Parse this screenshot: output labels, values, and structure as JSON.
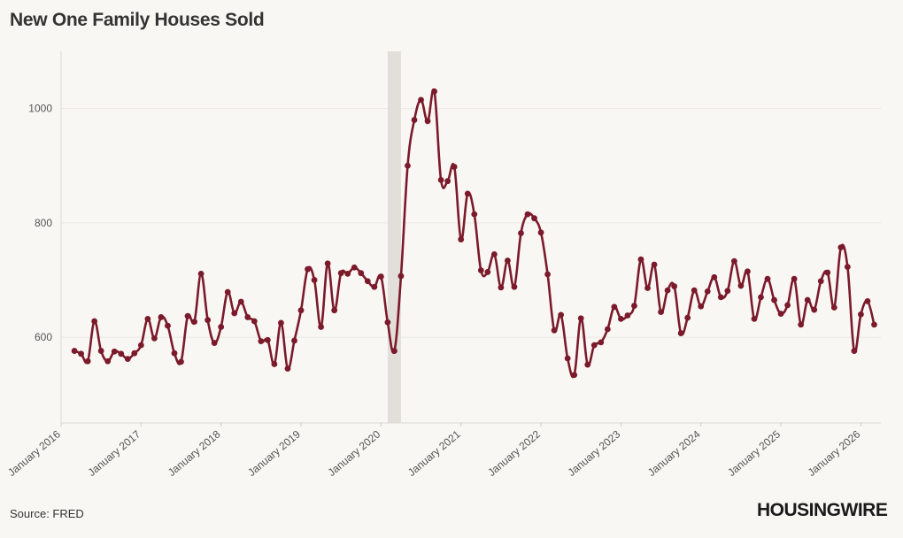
{
  "header": {
    "title": "New One Family Houses Sold"
  },
  "footer": {
    "source": "Source: FRED",
    "logo_text": "HOUSINGWIRE"
  },
  "colors": {
    "line": "#7b1a2a",
    "recession": "#e2dfdb",
    "grid": "#ebe8e4",
    "background": "#f9f7f4"
  },
  "chart_data": {
    "type": "line",
    "title": "New One Family Houses Sold",
    "xlabel": "",
    "ylabel": "",
    "x_start": "2016-03",
    "frequency": "monthly",
    "ylim": [
      450,
      1100
    ],
    "yticks": [
      600,
      800,
      1000
    ],
    "ytick_labels": [
      "600",
      "800",
      "1000"
    ],
    "xticks": [
      "2016-01",
      "2017-01",
      "2018-01",
      "2019-01",
      "2020-01",
      "2021-01",
      "2022-01",
      "2023-01",
      "2024-01",
      "2025-01",
      "2026-01"
    ],
    "xtick_labels": [
      "January 2016",
      "January 2017",
      "January 2018",
      "January 2019",
      "January 2020",
      "January 2021",
      "January 2022",
      "January 2023",
      "January 2024",
      "January 2025",
      "January 2026"
    ],
    "shaded_region": {
      "start": "2020-02",
      "end": "2020-04"
    },
    "grid": true,
    "legend": "none",
    "series": [
      {
        "values": [
          576,
          571,
          558,
          628,
          576,
          558,
          575,
          571,
          562,
          572,
          586,
          632,
          598,
          635,
          620,
          572,
          557,
          637,
          627,
          711,
          630,
          590,
          618,
          679,
          642,
          662,
          635,
          628,
          593,
          595,
          553,
          625,
          545,
          594,
          647,
          719,
          700,
          618,
          729,
          647,
          712,
          711,
          722,
          712,
          698,
          688,
          706,
          626,
          576,
          707,
          900,
          980,
          1015,
          978,
          1030,
          875,
          873,
          898,
          771,
          851,
          815,
          717,
          714,
          745,
          687,
          734,
          688,
          782,
          815,
          808,
          783,
          710,
          612,
          639,
          563,
          534,
          633,
          552,
          586,
          591,
          614,
          653,
          632,
          638,
          655,
          736,
          686,
          727,
          644,
          682,
          689,
          607,
          634,
          682,
          654,
          680,
          705,
          670,
          681,
          733,
          690,
          715,
          632,
          670,
          702,
          665,
          641,
          656,
          702,
          622,
          665,
          648,
          698,
          713,
          652,
          757,
          723,
          576,
          640,
          663,
          622
        ]
      }
    ]
  }
}
